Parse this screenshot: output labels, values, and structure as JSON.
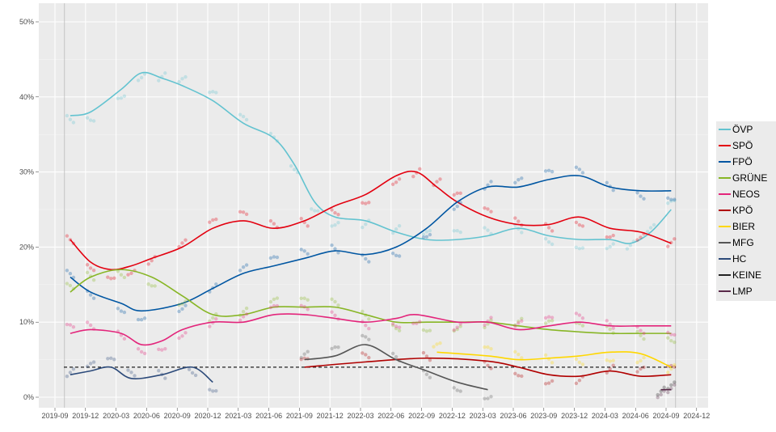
{
  "chart_data": {
    "type": "line",
    "title": "",
    "xlabel": "",
    "ylabel": "",
    "ylim": [
      0,
      50
    ],
    "y_ticks": [
      "0%",
      "10%",
      "20%",
      "30%",
      "40%",
      "50%"
    ],
    "x_ticks": [
      "2019-09",
      "2019-12",
      "2020-03",
      "2020-06",
      "2020-09",
      "2020-12",
      "2021-03",
      "2021-06",
      "2021-09",
      "2021-12",
      "2022-03",
      "2022-06",
      "2022-09",
      "2022-12",
      "2023-03",
      "2023-06",
      "2023-09",
      "2023-12",
      "2024-03",
      "2024-06",
      "2024-09",
      "2024-12"
    ],
    "grid": true,
    "legend_position": "right",
    "reference_line_y": 4,
    "vertical_lines": [
      "2019-09-29",
      "2024-09-29"
    ],
    "series": [
      {
        "name": "ÖVP",
        "color": "#63c3d0",
        "points": [
          [
            "2019-10",
            37.5
          ],
          [
            "2019-12",
            38
          ],
          [
            "2020-03",
            41
          ],
          [
            "2020-05",
            43.2
          ],
          [
            "2020-07",
            42.5
          ],
          [
            "2020-09",
            41.5
          ],
          [
            "2020-12",
            39.5
          ],
          [
            "2021-03",
            36.5
          ],
          [
            "2021-06",
            34.5
          ],
          [
            "2021-08",
            31
          ],
          [
            "2021-10",
            26
          ],
          [
            "2021-12",
            24
          ],
          [
            "2022-03",
            23.5
          ],
          [
            "2022-06",
            22
          ],
          [
            "2022-09",
            21
          ],
          [
            "2022-12",
            21
          ],
          [
            "2023-03",
            21.5
          ],
          [
            "2023-06",
            22.5
          ],
          [
            "2023-09",
            21.5
          ],
          [
            "2023-12",
            21
          ],
          [
            "2024-03",
            21
          ],
          [
            "2024-05",
            20.5
          ],
          [
            "2024-07",
            22
          ],
          [
            "2024-09",
            25
          ]
        ]
      },
      {
        "name": "SPÖ",
        "color": "#e3000f",
        "points": [
          [
            "2019-10",
            21
          ],
          [
            "2019-12",
            18
          ],
          [
            "2020-02",
            17
          ],
          [
            "2020-04",
            17.5
          ],
          [
            "2020-06",
            18.5
          ],
          [
            "2020-09",
            20
          ],
          [
            "2020-12",
            22.5
          ],
          [
            "2021-03",
            23.5
          ],
          [
            "2021-06",
            22.5
          ],
          [
            "2021-09",
            23.5
          ],
          [
            "2021-12",
            25.5
          ],
          [
            "2022-03",
            27
          ],
          [
            "2022-06",
            29.5
          ],
          [
            "2022-08",
            30
          ],
          [
            "2022-10",
            28
          ],
          [
            "2022-12",
            26
          ],
          [
            "2023-03",
            24
          ],
          [
            "2023-06",
            23
          ],
          [
            "2023-09",
            23
          ],
          [
            "2023-12",
            24
          ],
          [
            "2024-03",
            22.5
          ],
          [
            "2024-06",
            22
          ],
          [
            "2024-09",
            20.5
          ]
        ]
      },
      {
        "name": "FPÖ",
        "color": "#0056a2",
        "points": [
          [
            "2019-10",
            16
          ],
          [
            "2019-12",
            14
          ],
          [
            "2020-03",
            12.5
          ],
          [
            "2020-05",
            11.5
          ],
          [
            "2020-09",
            12.5
          ],
          [
            "2020-12",
            14.5
          ],
          [
            "2021-03",
            16.5
          ],
          [
            "2021-06",
            17.5
          ],
          [
            "2021-09",
            18.5
          ],
          [
            "2021-12",
            19.5
          ],
          [
            "2022-03",
            19
          ],
          [
            "2022-06",
            20
          ],
          [
            "2022-09",
            22.5
          ],
          [
            "2022-12",
            26
          ],
          [
            "2023-03",
            28
          ],
          [
            "2023-06",
            28
          ],
          [
            "2023-09",
            29
          ],
          [
            "2023-12",
            29.5
          ],
          [
            "2024-03",
            28
          ],
          [
            "2024-06",
            27.5
          ],
          [
            "2024-09",
            27.5
          ]
        ]
      },
      {
        "name": "GRÜNE",
        "color": "#88b626",
        "points": [
          [
            "2019-10",
            14
          ],
          [
            "2019-12",
            16
          ],
          [
            "2020-03",
            17
          ],
          [
            "2020-06",
            16
          ],
          [
            "2020-09",
            13.5
          ],
          [
            "2020-12",
            11
          ],
          [
            "2021-03",
            11
          ],
          [
            "2021-06",
            12
          ],
          [
            "2021-09",
            12
          ],
          [
            "2021-12",
            12
          ],
          [
            "2022-03",
            11
          ],
          [
            "2022-06",
            10
          ],
          [
            "2022-09",
            10
          ],
          [
            "2022-12",
            10
          ],
          [
            "2023-03",
            10
          ],
          [
            "2023-06",
            9.5
          ],
          [
            "2023-09",
            9
          ],
          [
            "2023-12",
            8.7
          ],
          [
            "2024-03",
            8.5
          ],
          [
            "2024-06",
            8.5
          ],
          [
            "2024-09",
            8.5
          ]
        ]
      },
      {
        "name": "NEOS",
        "color": "#e3257b",
        "points": [
          [
            "2019-10",
            8.5
          ],
          [
            "2019-12",
            9
          ],
          [
            "2020-03",
            8.5
          ],
          [
            "2020-05",
            7
          ],
          [
            "2020-07",
            7.5
          ],
          [
            "2020-09",
            9
          ],
          [
            "2020-12",
            10
          ],
          [
            "2021-03",
            10
          ],
          [
            "2021-06",
            11
          ],
          [
            "2021-09",
            11
          ],
          [
            "2021-12",
            10.5
          ],
          [
            "2022-03",
            10
          ],
          [
            "2022-06",
            10.5
          ],
          [
            "2022-08",
            11
          ],
          [
            "2022-12",
            10
          ],
          [
            "2023-03",
            10
          ],
          [
            "2023-06",
            9
          ],
          [
            "2023-09",
            9.5
          ],
          [
            "2023-12",
            10
          ],
          [
            "2024-03",
            9.5
          ],
          [
            "2024-06",
            9.5
          ],
          [
            "2024-09",
            9.5
          ]
        ]
      },
      {
        "name": "KPÖ",
        "color": "#b00000",
        "points": [
          [
            "2021-09",
            4
          ],
          [
            "2022-03",
            4.7
          ],
          [
            "2022-09",
            5.2
          ],
          [
            "2023-03",
            4.8
          ],
          [
            "2023-06",
            4
          ],
          [
            "2023-09",
            3
          ],
          [
            "2023-12",
            2.8
          ],
          [
            "2024-03",
            3.5
          ],
          [
            "2024-06",
            2.8
          ],
          [
            "2024-09",
            3
          ]
        ]
      },
      {
        "name": "BIER",
        "color": "#ffd700",
        "points": [
          [
            "2022-10",
            6
          ],
          [
            "2023-03",
            5.5
          ],
          [
            "2023-06",
            5
          ],
          [
            "2023-09",
            5.2
          ],
          [
            "2023-12",
            5.5
          ],
          [
            "2024-03",
            6
          ],
          [
            "2024-06",
            5.8
          ],
          [
            "2024-09",
            4
          ]
        ]
      },
      {
        "name": "MFG",
        "color": "#555555",
        "points": [
          [
            "2021-09",
            5
          ],
          [
            "2021-12",
            5.5
          ],
          [
            "2022-03",
            7
          ],
          [
            "2022-06",
            5
          ],
          [
            "2022-09",
            3.5
          ],
          [
            "2022-12",
            2
          ],
          [
            "2023-03",
            1
          ]
        ]
      },
      {
        "name": "HC",
        "color": "#2c4a7a",
        "points": [
          [
            "2019-10",
            3
          ],
          [
            "2019-12",
            3.5
          ],
          [
            "2020-02",
            4
          ],
          [
            "2020-04",
            2.5
          ],
          [
            "2020-07",
            3
          ],
          [
            "2020-10",
            4
          ],
          [
            "2020-12",
            2
          ]
        ]
      },
      {
        "name": "KEINE",
        "color": "#222222",
        "points": [
          [
            "2024-08",
            1
          ],
          [
            "2024-09",
            1
          ]
        ]
      },
      {
        "name": "LMP",
        "color": "#5a2a4a",
        "points": [
          [
            "2024-08",
            1
          ],
          [
            "2024-09",
            1
          ]
        ]
      }
    ]
  }
}
